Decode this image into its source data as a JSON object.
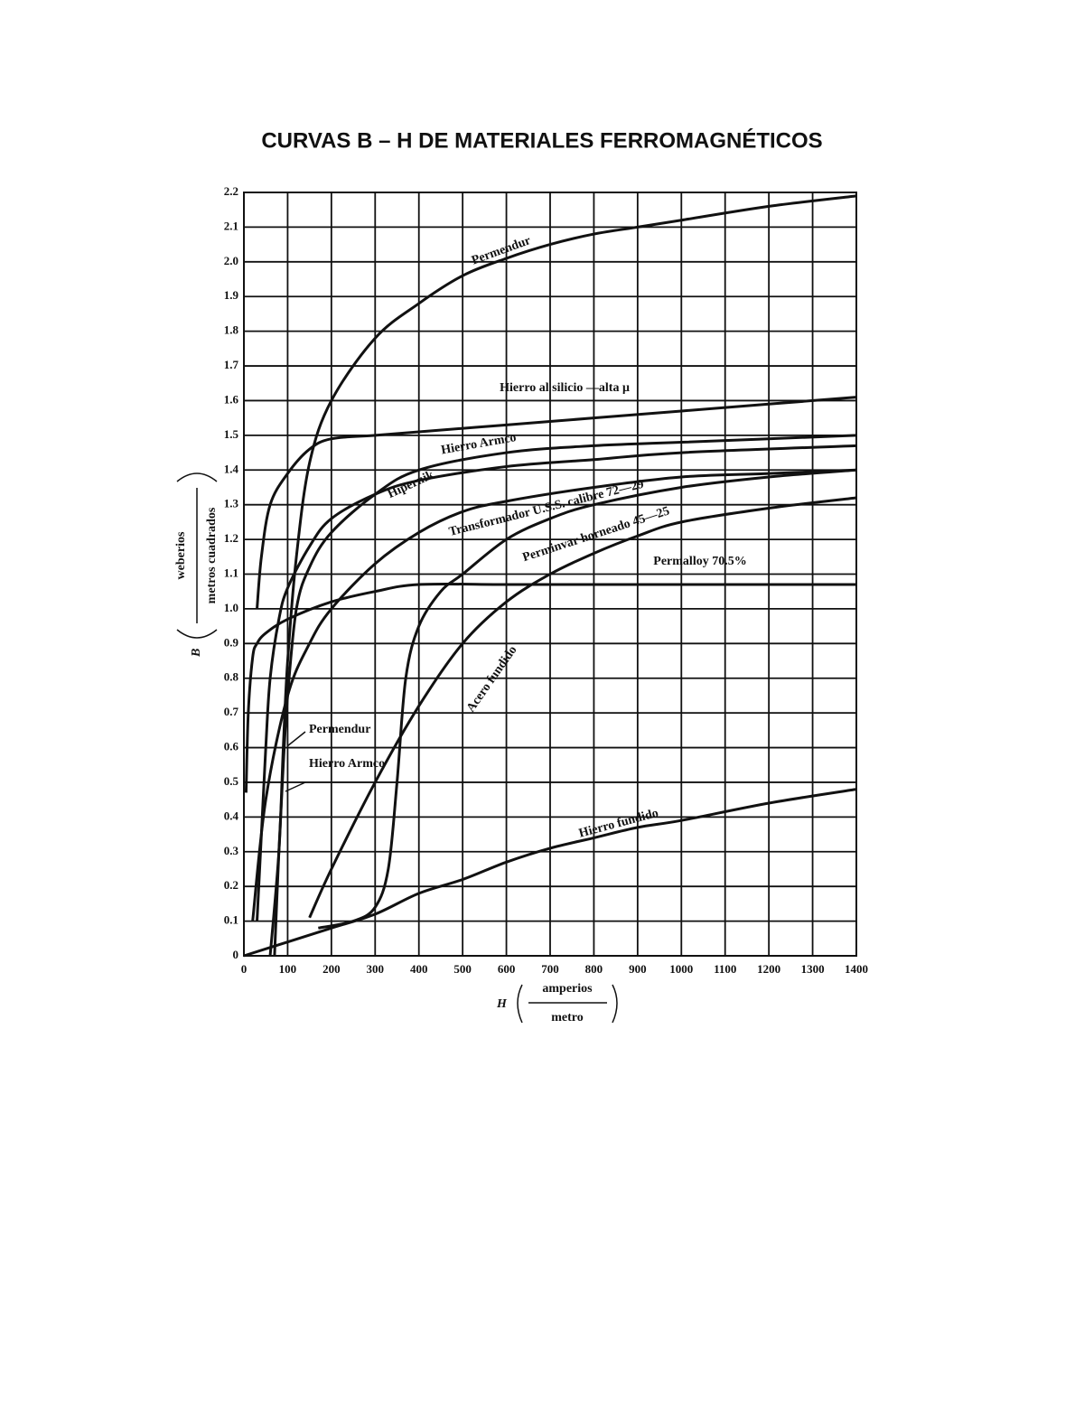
{
  "chart_data": {
    "type": "line",
    "title": "CURVAS B – H DE MATERIALES FERROMAGNÉTICOS",
    "x_label": {
      "symbol": "H",
      "numerator": "amperios",
      "denominator": "metro"
    },
    "y_label": {
      "symbol": "B",
      "numerator": "weberios",
      "denominator": "metros cuadrados"
    },
    "xlim": [
      0,
      1400
    ],
    "ylim": [
      0,
      2.2
    ],
    "xticks": [
      0,
      100,
      200,
      300,
      400,
      500,
      600,
      700,
      800,
      900,
      1000,
      1100,
      1200,
      1300,
      1400
    ],
    "yticks": [
      0,
      0.1,
      0.2,
      0.3,
      0.4,
      0.5,
      0.6,
      0.7,
      0.8,
      0.9,
      {
        "value": 1,
        "label": "1.0"
      },
      1.1,
      1.2,
      1.3,
      1.4,
      1.5,
      1.6,
      1.7,
      1.8,
      1.9,
      {
        "value": 2,
        "label": "2.0"
      },
      2.1,
      2.2
    ],
    "grid": true,
    "color": "#111111",
    "series": [
      {
        "name": "Permendur",
        "x": [
          60,
          80,
          90,
          100,
          120,
          150,
          200,
          300,
          400,
          500,
          600,
          700,
          800,
          900,
          1000,
          1200,
          1400
        ],
        "values": [
          0,
          0.3,
          0.6,
          0.85,
          1.15,
          1.42,
          1.6,
          1.78,
          1.88,
          1.96,
          2.01,
          2.05,
          2.08,
          2.1,
          2.12,
          2.16,
          2.19
        ]
      },
      {
        "name": "Hierro al silicio —alta μ",
        "x": [
          30,
          40,
          60,
          100,
          150,
          200,
          300,
          400,
          600,
          800,
          1000,
          1200,
          1400
        ],
        "values": [
          1.0,
          1.15,
          1.3,
          1.39,
          1.46,
          1.49,
          1.5,
          1.51,
          1.53,
          1.55,
          1.57,
          1.59,
          1.61
        ]
      },
      {
        "name": "Hierro Armco",
        "x": [
          70,
          80,
          90,
          100,
          120,
          150,
          200,
          300,
          400,
          600,
          800,
          1000,
          1400
        ],
        "values": [
          0,
          0.3,
          0.55,
          0.75,
          1.0,
          1.12,
          1.22,
          1.33,
          1.4,
          1.45,
          1.47,
          1.48,
          1.5
        ]
      },
      {
        "name": "Hipernik",
        "x": [
          30,
          40,
          50,
          60,
          80,
          100,
          150,
          200,
          300,
          400,
          600,
          800,
          1000,
          1400
        ],
        "values": [
          0.1,
          0.35,
          0.6,
          0.8,
          0.97,
          1.06,
          1.18,
          1.26,
          1.33,
          1.37,
          1.41,
          1.43,
          1.45,
          1.47
        ]
      },
      {
        "name": "Transformador U.S.S. calibre 72—29",
        "x": [
          20,
          50,
          100,
          150,
          200,
          300,
          400,
          500,
          600,
          800,
          1000,
          1200,
          1400
        ],
        "values": [
          0.1,
          0.45,
          0.75,
          0.9,
          1.0,
          1.13,
          1.22,
          1.28,
          1.31,
          1.35,
          1.38,
          1.39,
          1.4
        ]
      },
      {
        "name": "Perminvar horneado 45—25",
        "x": [
          170,
          250,
          300,
          330,
          350,
          370,
          400,
          450,
          500,
          600,
          700,
          800,
          1000,
          1200,
          1400
        ],
        "values": [
          0.08,
          0.1,
          0.14,
          0.25,
          0.5,
          0.8,
          0.95,
          1.05,
          1.1,
          1.2,
          1.26,
          1.3,
          1.35,
          1.38,
          1.4
        ]
      },
      {
        "name": "Permalloy 70.5%",
        "x": [
          5,
          10,
          20,
          30,
          50,
          100,
          200,
          300,
          400,
          600,
          800,
          1000,
          1400
        ],
        "values": [
          0.47,
          0.7,
          0.86,
          0.9,
          0.93,
          0.97,
          1.02,
          1.05,
          1.07,
          1.07,
          1.07,
          1.07,
          1.07
        ]
      },
      {
        "name": "Acero fundido",
        "x": [
          150,
          200,
          300,
          400,
          500,
          600,
          700,
          800,
          900,
          1000,
          1200,
          1400
        ],
        "values": [
          0.11,
          0.25,
          0.5,
          0.72,
          0.9,
          1.02,
          1.1,
          1.16,
          1.21,
          1.25,
          1.29,
          1.32
        ]
      },
      {
        "name": "Hierro fundido",
        "x": [
          0,
          100,
          200,
          300,
          400,
          500,
          600,
          700,
          800,
          900,
          1000,
          1200,
          1400
        ],
        "values": [
          0,
          0.04,
          0.08,
          0.12,
          0.18,
          0.22,
          0.27,
          0.31,
          0.34,
          0.37,
          0.39,
          0.44,
          0.48
        ]
      }
    ],
    "annotations": [
      {
        "text": "Permendur"
      },
      {
        "text": "Hierro Armco"
      }
    ]
  }
}
